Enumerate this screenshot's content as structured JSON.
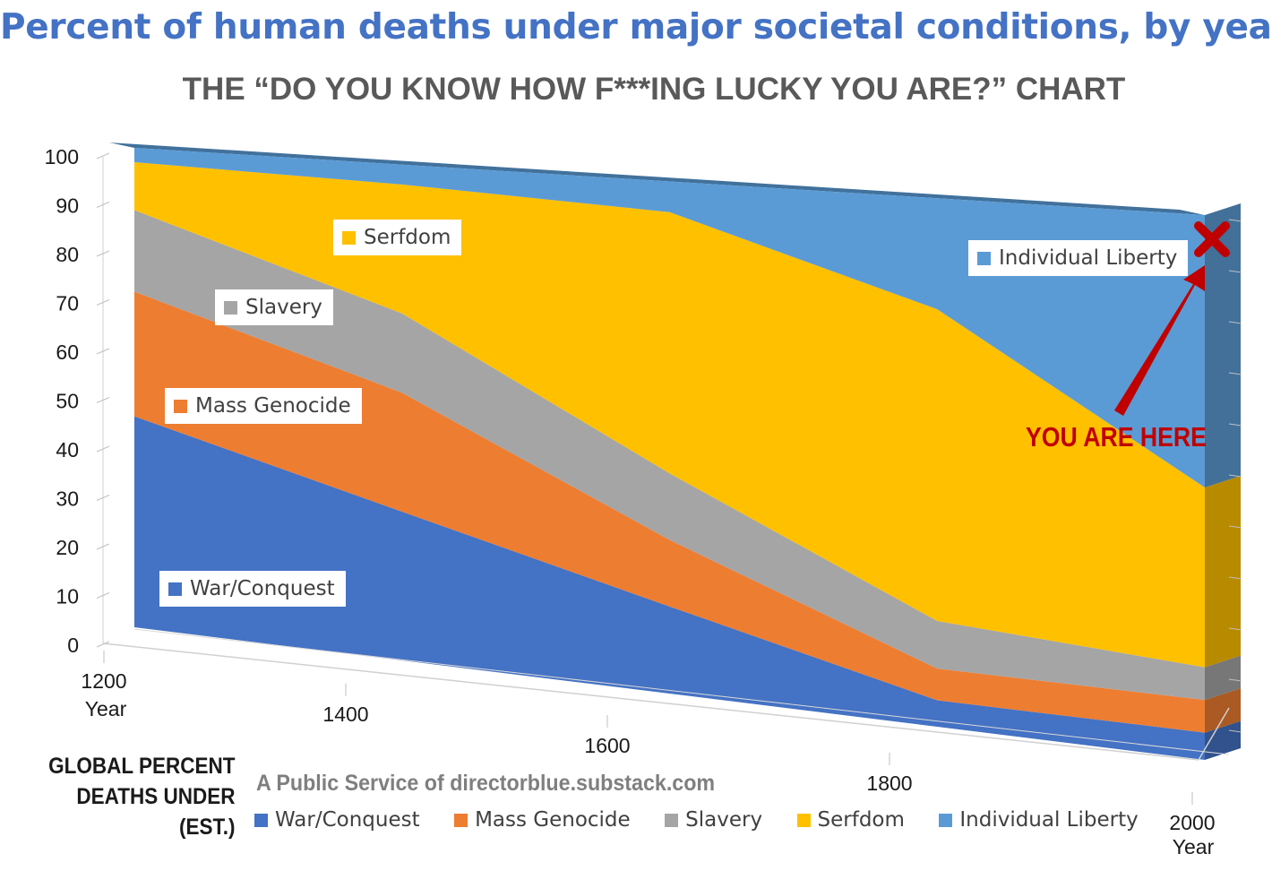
{
  "header": {
    "title": "Percent of human deaths under major societal conditions, by year"
  },
  "chart_data": {
    "type": "area",
    "stacked": true,
    "three_d": true,
    "title": "THE “DO YOU KNOW HOW F***ING LUCKY YOU ARE?” CHART",
    "xlabel": "Year",
    "ylabel_lines": [
      "GLOBAL PERCENT",
      "DEATHS UNDER",
      "(EST.)"
    ],
    "x": [
      1200,
      1400,
      1600,
      1800,
      2000
    ],
    "x_tick_labels": [
      "1200",
      "1400",
      "1600",
      "1800",
      "2000"
    ],
    "y_ticks": [
      0,
      10,
      20,
      30,
      40,
      50,
      60,
      70,
      80,
      90,
      100
    ],
    "ylim": [
      0,
      100
    ],
    "grid": false,
    "legend_position": "bottom",
    "series": [
      {
        "name": "War/Conquest",
        "values": [
          44,
          30,
          17,
          5,
          5
        ],
        "color": "#4472c4"
      },
      {
        "name": "Mass Genocide",
        "values": [
          26,
          24,
          13,
          6,
          6
        ],
        "color": "#ed7d31"
      },
      {
        "name": "Slavery",
        "values": [
          17,
          16,
          13,
          9,
          6
        ],
        "color": "#a5a5a5"
      },
      {
        "name": "Serfdom",
        "values": [
          10,
          26,
          51,
          59,
          33
        ],
        "color": "#ffc000"
      },
      {
        "name": "Individual Liberty",
        "values": [
          3,
          4,
          6,
          21,
          50
        ],
        "color": "#5b9bd5"
      }
    ],
    "annotations": [
      {
        "text": "YOU ARE HERE",
        "target_x": 2000,
        "target_y": 96,
        "color": "#c00000"
      }
    ]
  },
  "in_chart_labels": {
    "serfdom": "Serfdom",
    "slavery": "Slavery",
    "mass_genocide": "Mass Genocide",
    "war_conquest": "War/Conquest",
    "individual_liberty": "Individual Liberty"
  },
  "marker": {
    "icon": "x-marker-icon",
    "color": "#c00000"
  },
  "footer": {
    "credit": "A Public Service of directorblue.substack.com",
    "axis_word": "Year"
  }
}
